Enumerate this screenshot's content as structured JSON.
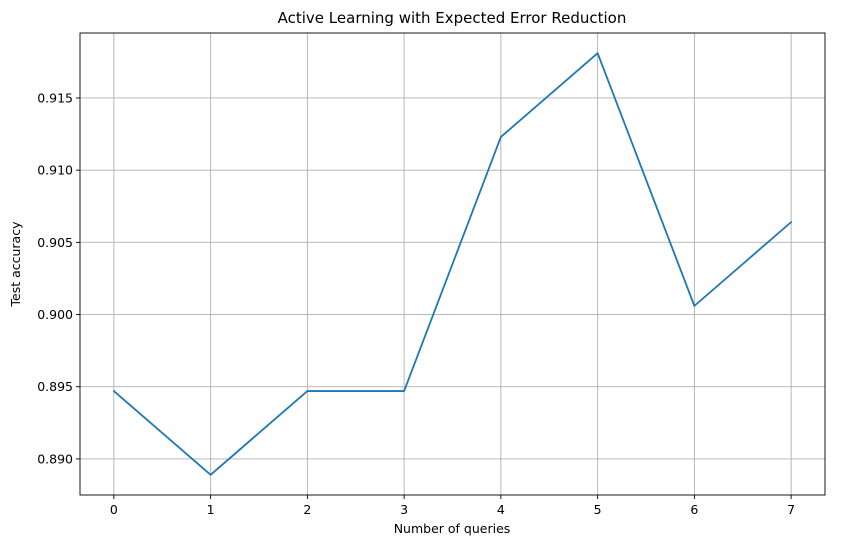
{
  "chart_data": {
    "type": "line",
    "title": "Active Learning with Expected Error Reduction",
    "xlabel": "Number of queries",
    "ylabel": "Test accuracy",
    "x": [
      0,
      1,
      2,
      3,
      4,
      5,
      6,
      7
    ],
    "series": [
      {
        "values": [
          0.8947,
          0.8889,
          0.8947,
          0.8947,
          0.9123,
          0.9181,
          0.9006,
          0.9064
        ]
      }
    ],
    "xlim": [
      -0.35,
      7.35
    ],
    "ylim": [
      0.8875,
      0.9195
    ],
    "xticks": [
      "0",
      "1",
      "2",
      "3",
      "4",
      "5",
      "6",
      "7"
    ],
    "yticks": [
      "0.890",
      "0.895",
      "0.900",
      "0.905",
      "0.910",
      "0.915"
    ],
    "grid": true,
    "line_color": "#1f77b4"
  }
}
